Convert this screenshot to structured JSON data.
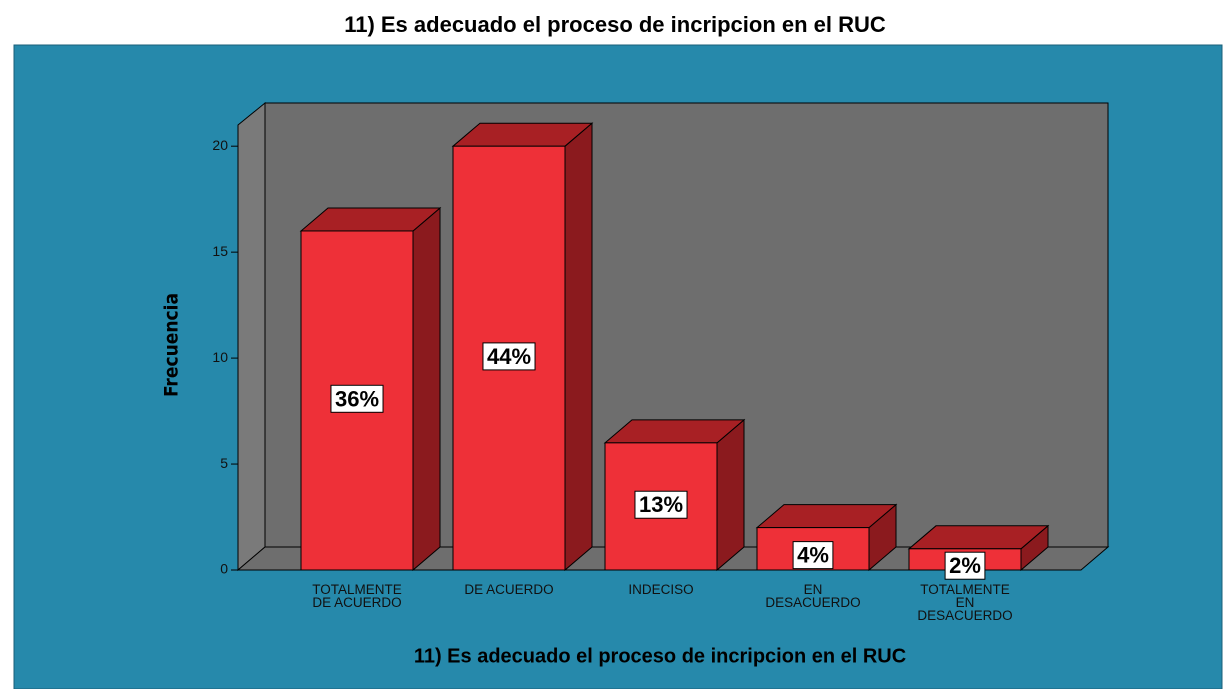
{
  "chart_data": {
    "type": "bar3d",
    "title": "11) Es adecuado el proceso de incripcion en el RUC",
    "x_label": "11) Es adecuado el proceso de incripcion en el RUC",
    "y_label": "Frecuencia",
    "categories": [
      "TOTALMENTE\nDE ACUERDO",
      "DE ACUERDO",
      "INDECISO",
      "EN\nDESACUERDO",
      "TOTALMENTE\nEN\nDESACUERDO"
    ],
    "values": [
      16,
      20,
      6,
      2,
      1
    ],
    "value_labels": [
      "36%",
      "44%",
      "13%",
      "4%",
      "2%"
    ],
    "color": "#ee3038",
    "ylim": [
      0,
      21
    ],
    "yticks": [
      0,
      5,
      10,
      15,
      20
    ]
  }
}
